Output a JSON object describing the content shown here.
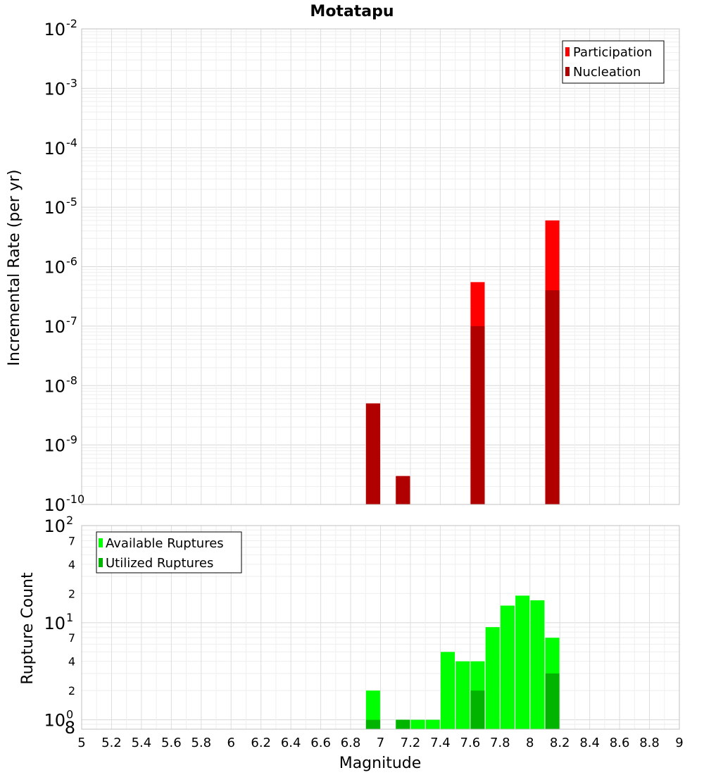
{
  "chart_data": [
    {
      "type": "bar",
      "title": "Motatapu",
      "ylabel": "Incremental Rate (per yr)",
      "xlabel": "",
      "y_scale": "log",
      "ylim": [
        1e-10,
        0.01
      ],
      "xlim": [
        5,
        9
      ],
      "y_ticks": [
        {
          "base": "10",
          "exp": "-2"
        },
        {
          "base": "10",
          "exp": "-3"
        },
        {
          "base": "10",
          "exp": "-4"
        },
        {
          "base": "10",
          "exp": "-5"
        },
        {
          "base": "10",
          "exp": "-6"
        },
        {
          "base": "10",
          "exp": "-7"
        },
        {
          "base": "10",
          "exp": "-8"
        },
        {
          "base": "10",
          "exp": "-9"
        },
        {
          "base": "10",
          "exp": "-10"
        }
      ],
      "legend": {
        "position": "top-right",
        "entries": [
          "Participation",
          "Nucleation"
        ]
      },
      "grid": true,
      "series": [
        {
          "name": "Participation",
          "color": "#ff0000",
          "x": [
            6.95,
            7.15,
            7.65,
            8.15
          ],
          "values": [
            5e-09,
            3e-10,
            5.5e-07,
            6e-06
          ]
        },
        {
          "name": "Nucleation",
          "color": "#b00000",
          "x": [
            6.95,
            7.15,
            7.65,
            8.15
          ],
          "values": [
            5e-09,
            3e-10,
            1e-07,
            4e-07
          ]
        }
      ]
    },
    {
      "type": "bar",
      "ylabel": "Rupture Count",
      "xlabel": "Magnitude",
      "y_scale": "log",
      "ylim": [
        0.8,
        100
      ],
      "xlim": [
        5,
        9
      ],
      "x_ticks": [
        "5",
        "5.2",
        "5.4",
        "5.6",
        "5.8",
        "6",
        "6.2",
        "6.4",
        "6.6",
        "6.8",
        "7",
        "7.2",
        "7.4",
        "7.6",
        "7.8",
        "8",
        "8.2",
        "8.4",
        "8.6",
        "8.8",
        "9"
      ],
      "y_major_ticks": [
        {
          "base": "10",
          "exp": "2"
        },
        {
          "base": "10",
          "exp": "1"
        },
        {
          "base": "10",
          "exp": "0"
        }
      ],
      "y_minor_ticks": [
        "7",
        "4",
        "2",
        "7",
        "4",
        "2",
        "8"
      ],
      "legend": {
        "position": "top-left",
        "entries": [
          "Available Ruptures",
          "Utilized Ruptures"
        ]
      },
      "grid": true,
      "series": [
        {
          "name": "Available Ruptures",
          "color": "#00ff00",
          "x": [
            6.95,
            7.15,
            7.25,
            7.35,
            7.45,
            7.55,
            7.65,
            7.75,
            7.85,
            7.95,
            8.05,
            8.15
          ],
          "values": [
            2,
            1,
            1,
            1,
            5,
            4,
            4,
            9,
            15,
            19,
            17,
            7
          ]
        },
        {
          "name": "Utilized Ruptures",
          "color": "#00b400",
          "x": [
            6.95,
            7.15,
            7.65,
            8.15
          ],
          "values": [
            1,
            1,
            2,
            3
          ]
        }
      ]
    }
  ]
}
